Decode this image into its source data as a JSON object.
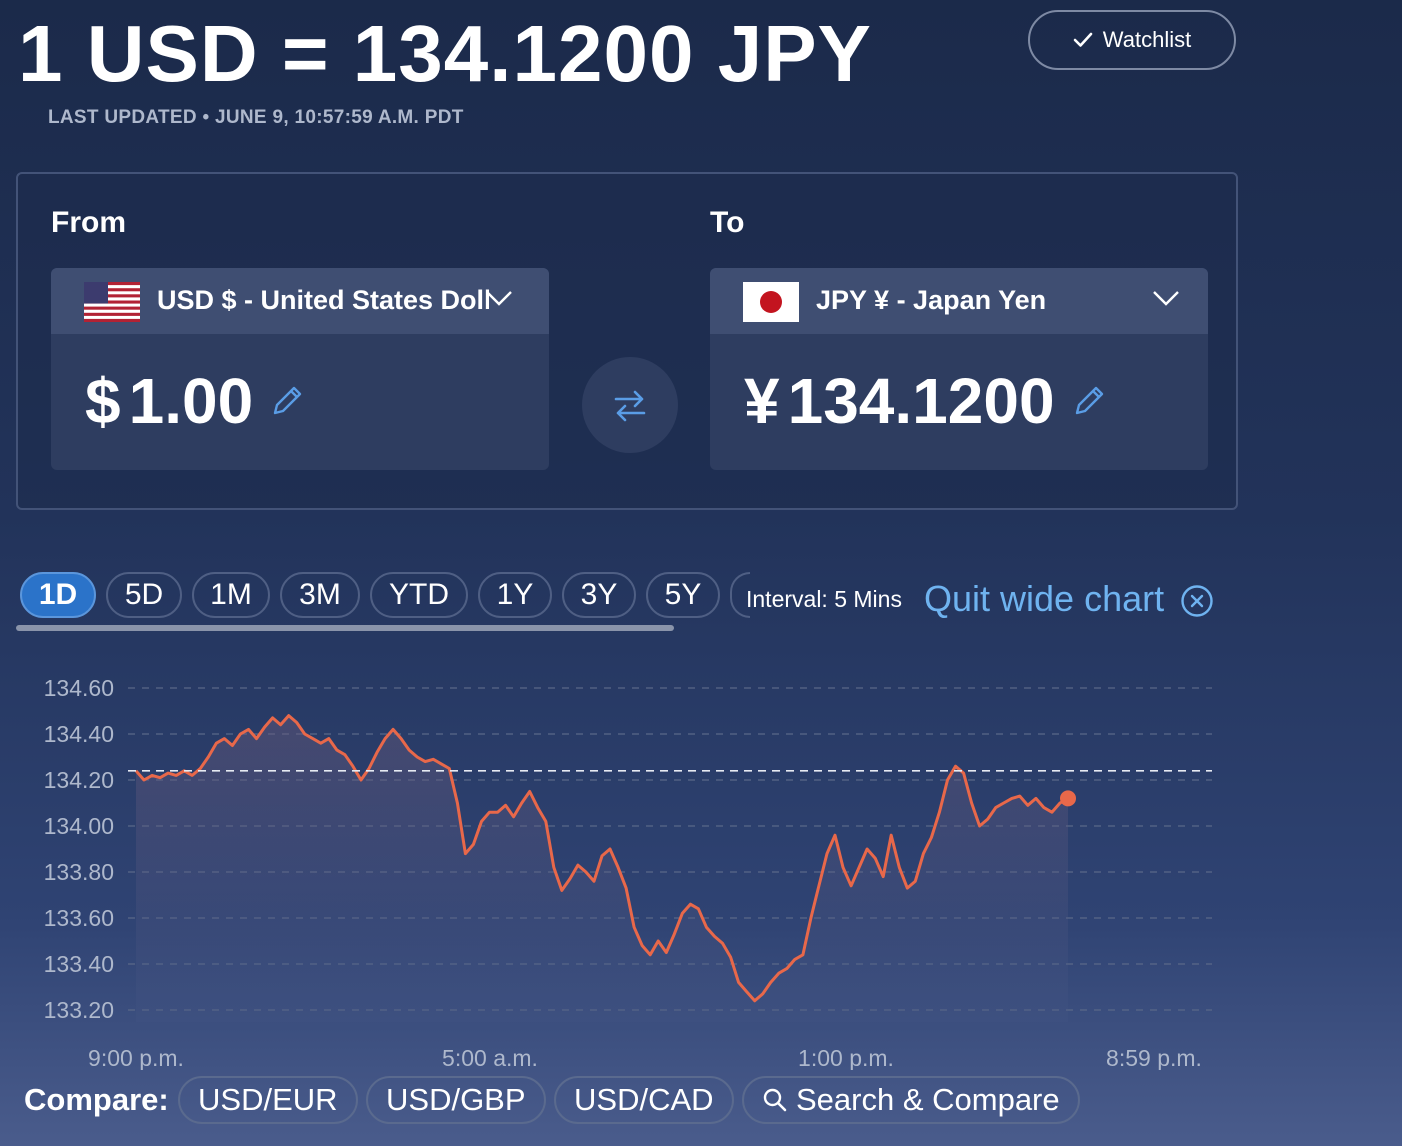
{
  "header": {
    "title": "1 USD = 134.1200 JPY",
    "last_updated": "LAST UPDATED • JUNE 9, 10:57:59 A.M. PDT",
    "watchlist_label": "Watchlist"
  },
  "converter": {
    "from_label": "From",
    "to_label": "To",
    "from_currency": "USD $ - United States Dollar",
    "to_currency": "JPY ¥ - Japan Yen",
    "from_symbol": "$",
    "from_amount": "1.00",
    "to_symbol": "¥",
    "to_amount": "134.1200"
  },
  "tabs": [
    {
      "label": "1D",
      "active": true
    },
    {
      "label": "5D"
    },
    {
      "label": "1M"
    },
    {
      "label": "3M"
    },
    {
      "label": "YTD"
    },
    {
      "label": "1Y"
    },
    {
      "label": "3Y"
    },
    {
      "label": "5Y"
    }
  ],
  "interval_label": "Interval: 5 Mins",
  "quit_wide_label": "Quit wide chart",
  "compare": {
    "label": "Compare:",
    "pairs": [
      "USD/EUR",
      "USD/GBP",
      "USD/CAD"
    ],
    "search_label": "Search & Compare"
  },
  "colors": {
    "line": "#e8684a",
    "active_tab": "#2b73c9",
    "accent_link": "#6fb3f0"
  },
  "chart_data": {
    "type": "line",
    "title": "",
    "xlabel": "",
    "ylabel": "",
    "ylim": [
      133.2,
      134.6
    ],
    "y_ticks": [
      "134.60",
      "134.40",
      "134.20",
      "134.00",
      "133.80",
      "133.60",
      "133.40",
      "133.20"
    ],
    "x_tick_labels": [
      "9:00 p.m.",
      "5:00 a.m.",
      "1:00 p.m.",
      "8:59 p.m."
    ],
    "reference_value": 134.24,
    "grid": true,
    "series": [
      {
        "values": [
          134.24,
          134.2,
          134.22,
          134.21,
          134.23,
          134.22,
          134.24,
          134.22,
          134.25,
          134.3,
          134.36,
          134.38,
          134.35,
          134.4,
          134.42,
          134.38,
          134.43,
          134.47,
          134.44,
          134.48,
          134.45,
          134.4,
          134.38,
          134.36,
          134.38,
          134.33,
          134.31,
          134.26,
          134.2,
          134.25,
          134.32,
          134.38,
          134.42,
          134.38,
          134.33,
          134.3,
          134.28,
          134.29,
          134.27,
          134.25,
          134.1,
          133.88,
          133.92,
          134.02,
          134.06,
          134.06,
          134.09,
          134.04,
          134.1,
          134.15,
          134.08,
          134.02,
          133.82,
          133.72,
          133.77,
          133.83,
          133.8,
          133.76,
          133.87,
          133.9,
          133.82,
          133.73,
          133.56,
          133.48,
          133.44,
          133.5,
          133.45,
          133.53,
          133.62,
          133.66,
          133.64,
          133.56,
          133.52,
          133.49,
          133.43,
          133.32,
          133.28,
          133.24,
          133.27,
          133.32,
          133.36,
          133.38,
          133.42,
          133.44,
          133.6,
          133.74,
          133.88,
          133.96,
          133.82,
          133.74,
          133.82,
          133.9,
          133.86,
          133.78,
          133.96,
          133.82,
          133.73,
          133.76,
          133.88,
          133.95,
          134.06,
          134.2,
          134.26,
          134.23,
          134.1,
          134.0,
          134.03,
          134.08,
          134.1,
          134.12,
          134.13,
          134.09,
          134.12,
          134.08,
          134.06,
          134.1,
          134.12
        ]
      }
    ]
  }
}
